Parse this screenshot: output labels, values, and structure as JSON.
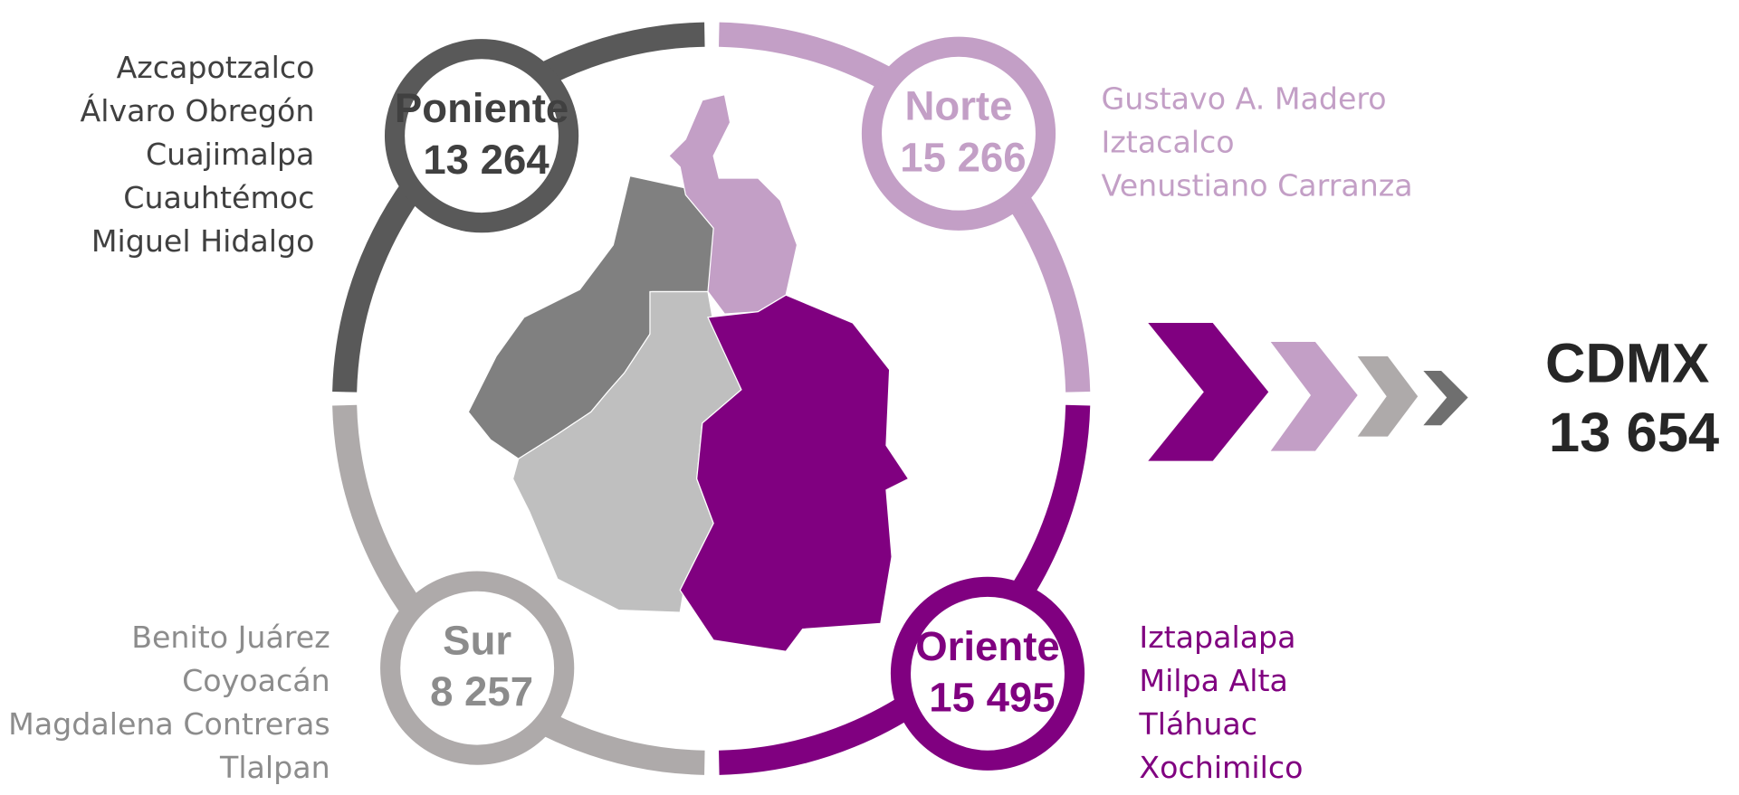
{
  "regions": [
    {
      "name": "Poniente",
      "value": "13 264",
      "boroughs": [
        "Azcapotzalco",
        "Álvaro Obregón",
        "Cuajimalpa",
        "Cuauhtémoc",
        "Miguel Hidalgo"
      ]
    },
    {
      "name": "Norte",
      "value": "15 266",
      "boroughs": [
        "Gustavo A. Madero",
        "Iztacalco",
        "Venustiano Carranza"
      ]
    },
    {
      "name": "Sur",
      "value": "8 257",
      "boroughs": [
        "Benito Juárez",
        "Coyoacán",
        "Magdalena Contreras",
        "Tlalpan"
      ]
    },
    {
      "name": "Oriente",
      "value": "15 495",
      "boroughs": [
        "Iztapalapa",
        "Milpa Alta",
        "Tláhuac",
        "Xochimilco"
      ]
    }
  ],
  "total": {
    "name": "CDMX",
    "value": "13 654"
  }
}
